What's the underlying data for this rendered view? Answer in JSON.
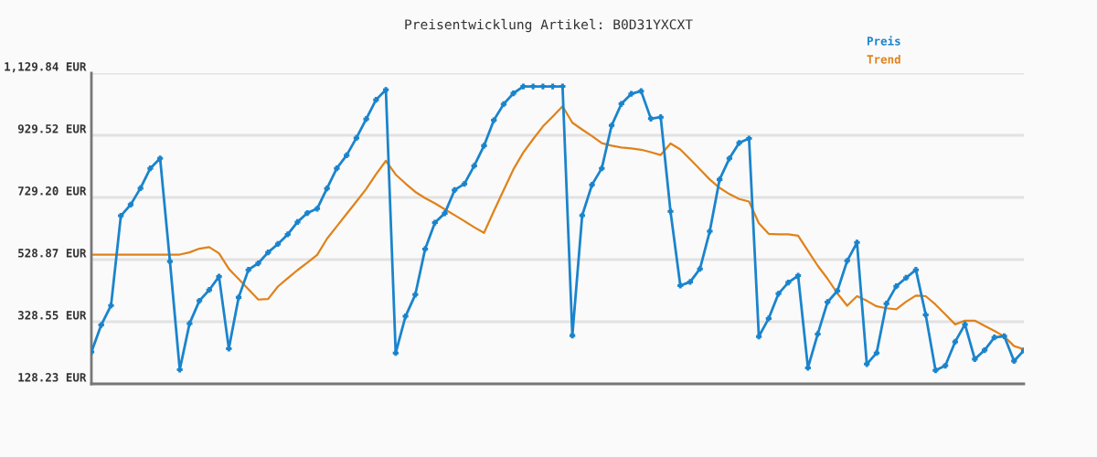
{
  "chart_data": {
    "type": "line",
    "title": "Preisentwicklung Artikel: B0D31YXCXT",
    "categories": [
      null,
      null,
      null,
      null,
      null,
      null,
      null,
      null,
      null,
      null,
      null,
      null,
      null,
      null,
      null,
      null,
      null,
      null,
      null,
      null,
      null,
      null,
      null,
      null,
      null,
      null,
      null,
      null,
      null,
      null,
      null,
      null,
      null,
      null,
      null,
      null,
      null,
      null,
      null,
      null,
      null,
      null,
      null,
      null,
      null,
      null,
      null,
      null,
      null,
      null,
      null,
      null,
      null,
      null,
      null,
      null,
      null,
      null,
      null,
      null,
      null,
      null,
      null,
      null,
      null,
      null,
      null,
      null,
      null,
      null,
      null,
      null,
      null,
      null,
      null,
      null,
      null,
      null,
      null,
      null,
      null,
      null,
      null,
      null,
      null,
      null,
      null,
      null,
      null,
      null,
      null,
      null,
      null,
      null,
      null,
      null
    ],
    "series": [
      {
        "name": "Preis",
        "color": "#1a84cc",
        "marker": "cross",
        "values": [
          231,
          318,
          381,
          670,
          706,
          759,
          823,
          855,
          523,
          174,
          323,
          396,
          431,
          474,
          242,
          407,
          496,
          517,
          552,
          579,
          610,
          650,
          679,
          693,
          758,
          823,
          865,
          921,
          982,
          1044,
          1076,
          228,
          346,
          416,
          563,
          648,
          678,
          753,
          773,
          831,
          896,
          978,
          1030,
          1065,
          1087,
          1087,
          1087,
          1087,
          1087,
          284,
          671,
          770,
          823,
          961,
          1031,
          1063,
          1072,
          983,
          988,
          684,
          445,
          457,
          499,
          620,
          787,
          855,
          905,
          919,
          281,
          339,
          419,
          455,
          477,
          180,
          289,
          392,
          428,
          525,
          584,
          192,
          228,
          387,
          443,
          470,
          496,
          351,
          172,
          187,
          264,
          320,
          208,
          237,
          278,
          282,
          202,
          236
        ]
      },
      {
        "name": "Trend",
        "color": "#e0821a",
        "marker": "none",
        "values": [
          545,
          545,
          545,
          545,
          545,
          545,
          545,
          545,
          545,
          545,
          552,
          564,
          569,
          549,
          499,
          466,
          433,
          400,
          402,
          442,
          469,
          495,
          519,
          544,
          596,
          636,
          676,
          716,
          757,
          804,
          847,
          803,
          774,
          747,
          727,
          710,
          691,
          672,
          653,
          633,
          615,
          685,
          753,
          820,
          874,
          917,
          958,
          990,
          1023,
          970,
          948,
          927,
          904,
          896,
          890,
          887,
          883,
          875,
          866,
          903,
          884,
          852,
          820,
          787,
          760,
          740,
          724,
          716,
          646,
          612,
          610,
          610,
          606,
          557,
          509,
          467,
          420,
          380,
          411,
          396,
          378,
          372,
          369,
          393,
          413,
          411,
          384,
          352,
          320,
          332,
          332,
          315,
          299,
          281,
          250,
          240
        ]
      }
    ],
    "ylim": [
      128.23,
      1129.84
    ],
    "yticks": [
      {
        "value": 128.23,
        "label": "128.23 EUR"
      },
      {
        "value": 328.55,
        "label": "328.55 EUR"
      },
      {
        "value": 528.87,
        "label": "528.87 EUR"
      },
      {
        "value": 729.2,
        "label": "729.20 EUR"
      },
      {
        "value": 929.52,
        "label": "929.52 EUR"
      },
      {
        "value": 1129.84,
        "label": "1,129.84 EUR"
      }
    ],
    "grid": "y",
    "legend": "top right",
    "tick_labels": "y",
    "line_style": "solid"
  }
}
